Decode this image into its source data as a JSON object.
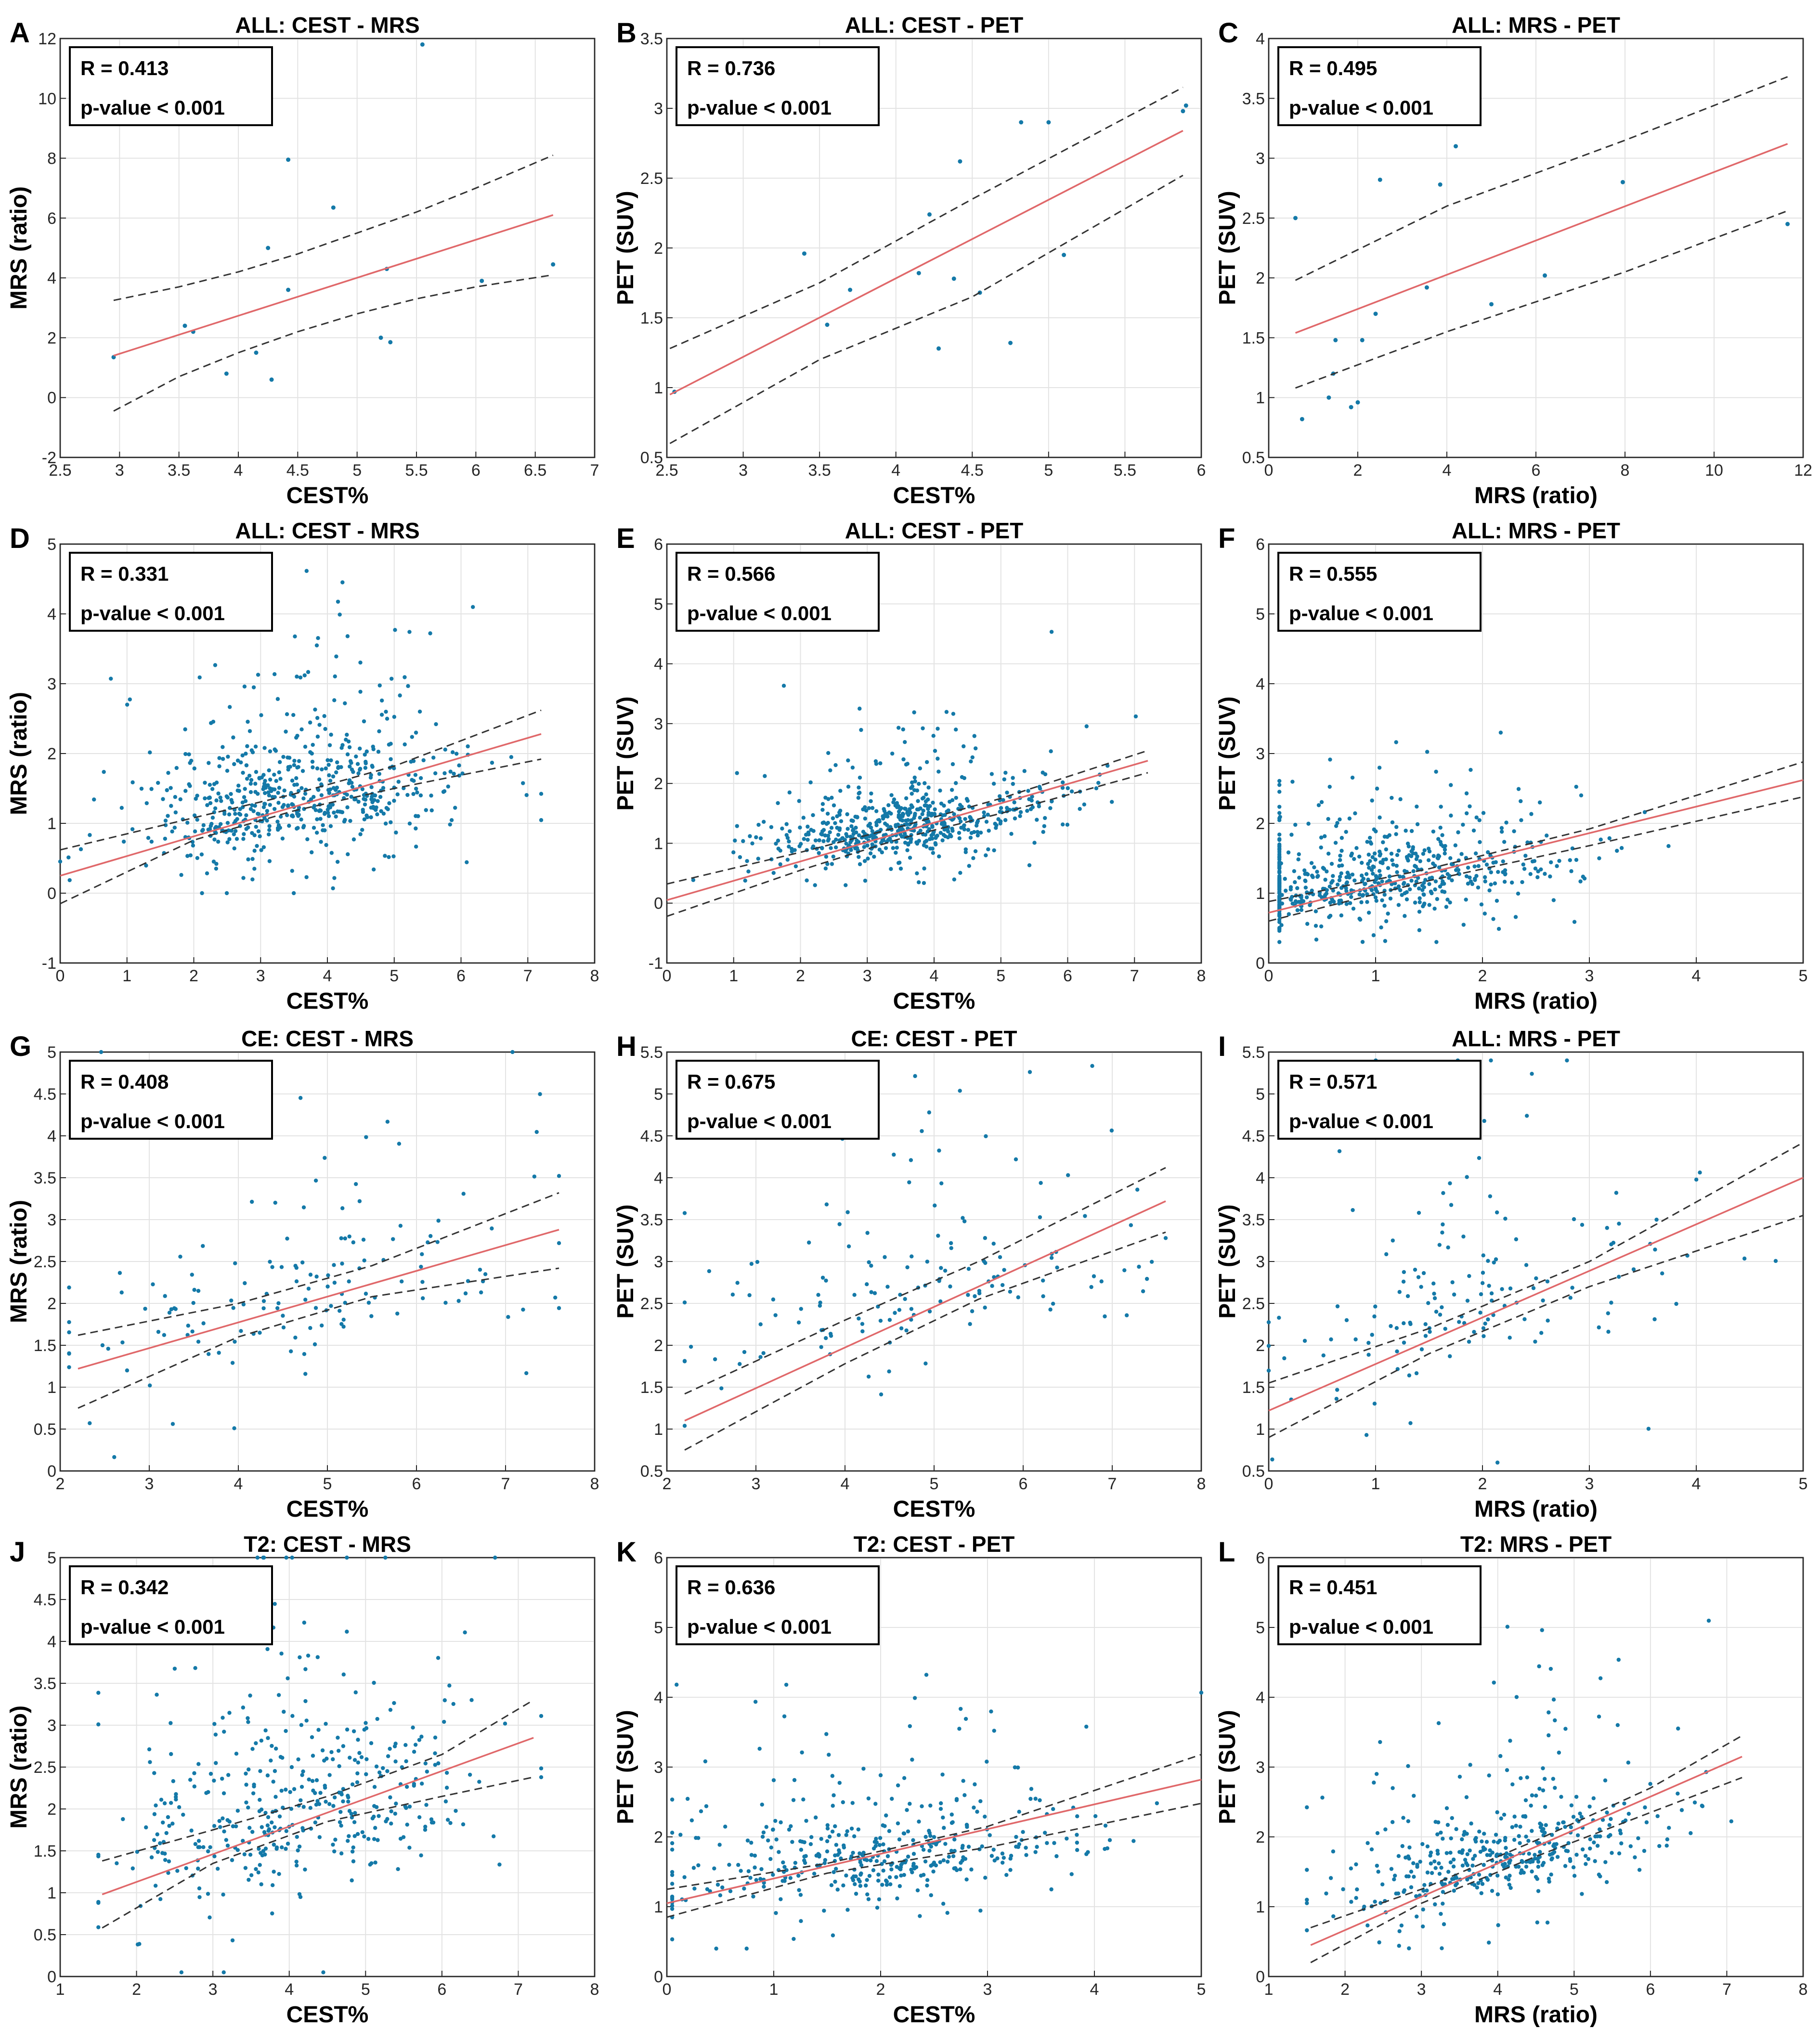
{
  "colors": {
    "points": "#1479a8",
    "fit": "#e0686a",
    "ci": "#333333"
  },
  "chart_data": [
    {
      "letter": "A",
      "type": "scatter",
      "title": "ALL: CEST - MRS",
      "xlabel": "CEST%",
      "ylabel": "MRS (ratio)",
      "xlim": [
        2.5,
        7
      ],
      "ylim": [
        -2,
        12
      ],
      "xticks": [
        2.5,
        3,
        3.5,
        4,
        4.5,
        5,
        5.5,
        6,
        6.5,
        7
      ],
      "yticks": [
        -2,
        0,
        2,
        4,
        6,
        8,
        10,
        12
      ],
      "r_label": "R = 0.413",
      "p_label": "p-value < 0.001",
      "grid": true,
      "stats_position": "top-left",
      "fit": {
        "x": [
          2.95,
          6.65
        ],
        "y": [
          1.4,
          6.1
        ]
      },
      "ci_upper": {
        "x": [
          2.95,
          3.5,
          4,
          4.5,
          5,
          5.5,
          6,
          6.65
        ],
        "y": [
          3.25,
          3.7,
          4.2,
          4.8,
          5.5,
          6.2,
          7.0,
          8.1
        ]
      },
      "ci_lower": {
        "x": [
          2.95,
          3.5,
          4,
          4.5,
          5,
          5.5,
          6,
          6.65
        ],
        "y": [
          -0.45,
          0.7,
          1.5,
          2.2,
          2.8,
          3.3,
          3.7,
          4.1
        ]
      },
      "points": {
        "x": [
          2.95,
          3.55,
          3.62,
          3.9,
          4.15,
          4.25,
          4.28,
          4.42,
          4.42,
          4.8,
          5.2,
          5.25,
          5.28,
          5.55,
          6.05,
          6.65
        ],
        "y": [
          1.35,
          2.4,
          2.2,
          0.8,
          1.5,
          5.0,
          0.6,
          7.95,
          3.6,
          6.35,
          2.0,
          4.3,
          1.85,
          11.8,
          3.9,
          4.45
        ]
      }
    },
    {
      "letter": "B",
      "type": "scatter",
      "title": "ALL: CEST - PET",
      "xlabel": "CEST%",
      "ylabel": "PET (SUV)",
      "xlim": [
        2.5,
        6
      ],
      "ylim": [
        0.5,
        3.5
      ],
      "xticks": [
        2.5,
        3,
        3.5,
        4,
        4.5,
        5,
        5.5,
        6
      ],
      "yticks": [
        0.5,
        1,
        1.5,
        2,
        2.5,
        3,
        3.5
      ],
      "r_label": "R = 0.736",
      "p_label": "p-value < 0.001",
      "grid": true,
      "stats_position": "top-left",
      "fit": {
        "x": [
          2.52,
          5.88
        ],
        "y": [
          0.95,
          2.84
        ]
      },
      "ci_upper": {
        "x": [
          2.52,
          3.5,
          4.5,
          5.88
        ],
        "y": [
          1.28,
          1.75,
          2.35,
          3.15
        ]
      },
      "ci_lower": {
        "x": [
          2.52,
          3.5,
          4.5,
          5.88
        ],
        "y": [
          0.6,
          1.2,
          1.65,
          2.52
        ]
      },
      "points": {
        "x": [
          2.55,
          3.4,
          3.55,
          3.7,
          4.15,
          4.22,
          4.28,
          4.38,
          4.42,
          4.55,
          4.75,
          4.82,
          5.0,
          5.1,
          5.88,
          5.9
        ],
        "y": [
          0.97,
          1.96,
          1.45,
          1.7,
          1.82,
          2.24,
          1.28,
          1.78,
          2.62,
          1.68,
          1.32,
          2.9,
          2.9,
          1.95,
          2.98,
          3.02
        ]
      }
    },
    {
      "letter": "C",
      "type": "scatter",
      "title": "ALL: MRS - PET",
      "xlabel": "MRS (ratio)",
      "ylabel": "PET (SUV)",
      "xlim": [
        0,
        12
      ],
      "ylim": [
        0.5,
        4
      ],
      "xticks": [
        0,
        2,
        4,
        6,
        8,
        10,
        12
      ],
      "yticks": [
        0.5,
        1,
        1.5,
        2,
        2.5,
        3,
        3.5,
        4
      ],
      "r_label": "R = 0.495",
      "p_label": "p-value < 0.001",
      "grid": true,
      "stats_position": "top-left",
      "fit": {
        "x": [
          0.6,
          11.65
        ],
        "y": [
          1.54,
          3.12
        ]
      },
      "ci_upper": {
        "x": [
          0.6,
          4,
          8,
          11.65
        ],
        "y": [
          1.98,
          2.6,
          3.15,
          3.68
        ]
      },
      "ci_lower": {
        "x": [
          0.6,
          4,
          8,
          11.65
        ],
        "y": [
          1.08,
          1.55,
          2.05,
          2.56
        ]
      },
      "points": {
        "x": [
          0.6,
          0.75,
          1.35,
          1.45,
          1.5,
          1.85,
          2.0,
          2.1,
          2.4,
          2.5,
          3.55,
          3.85,
          4.2,
          5.0,
          6.2,
          7.95,
          11.65
        ],
        "y": [
          2.5,
          0.82,
          1.0,
          1.2,
          1.48,
          0.92,
          0.96,
          1.48,
          1.7,
          2.82,
          1.92,
          2.78,
          3.1,
          1.78,
          2.02,
          2.8,
          2.45
        ]
      }
    },
    {
      "letter": "D",
      "type": "scatter",
      "title": "ALL: CEST - MRS",
      "xlabel": "CEST%",
      "ylabel": "MRS (ratio)",
      "xlim": [
        0,
        8
      ],
      "ylim": [
        -1,
        5
      ],
      "xticks": [
        0,
        1,
        2,
        3,
        4,
        5,
        6,
        7,
        8
      ],
      "yticks": [
        -1,
        0,
        1,
        2,
        3,
        4,
        5
      ],
      "r_label": "R = 0.331",
      "p_label": "p-value < 0.001",
      "grid": true,
      "stats_position": "top-left",
      "fit": {
        "x": [
          0,
          7.2
        ],
        "y": [
          0.25,
          2.28
        ]
      },
      "ci_upper": {
        "x": [
          0,
          2,
          3.5,
          5,
          7.2
        ],
        "y": [
          0.62,
          1.08,
          1.42,
          1.82,
          2.62
        ]
      },
      "ci_lower": {
        "x": [
          0,
          2,
          3.5,
          5,
          7.2
        ],
        "y": [
          -0.15,
          0.76,
          1.18,
          1.5,
          1.92
        ]
      },
      "cloud": {
        "n": 620,
        "x_center": 3.6,
        "x_spread": 1.2,
        "y_center": 1.15,
        "y_spread": 0.85,
        "x_min": 0,
        "x_max": 7.2,
        "y_min": 0.0,
        "y_max": 5
      }
    },
    {
      "letter": "E",
      "type": "scatter",
      "title": "ALL: CEST - PET",
      "xlabel": "CEST%",
      "ylabel": "PET (SUV)",
      "xlim": [
        0,
        8
      ],
      "ylim": [
        -1,
        6
      ],
      "xticks": [
        0,
        1,
        2,
        3,
        4,
        5,
        6,
        7,
        8
      ],
      "yticks": [
        -1,
        0,
        1,
        2,
        3,
        4,
        5,
        6
      ],
      "r_label": "R = 0.566",
      "p_label": "p-value < 0.001",
      "grid": true,
      "stats_position": "top-left",
      "fit": {
        "x": [
          0,
          7.2
        ],
        "y": [
          0.05,
          2.38
        ]
      },
      "ci_upper": {
        "x": [
          0,
          2,
          3.5,
          5,
          7.2
        ],
        "y": [
          0.32,
          0.85,
          1.28,
          1.75,
          2.55
        ]
      },
      "ci_lower": {
        "x": [
          0,
          2,
          3.5,
          5,
          7.2
        ],
        "y": [
          -0.22,
          0.55,
          1.08,
          1.5,
          2.18
        ]
      },
      "cloud": {
        "n": 620,
        "x_center": 3.6,
        "x_spread": 1.1,
        "y_center": 1.15,
        "y_spread": 0.55,
        "x_min": 0,
        "x_max": 7.2,
        "y_min": 0.3,
        "y_max": 5.4
      }
    },
    {
      "letter": "F",
      "type": "scatter",
      "title": "ALL: MRS - PET",
      "xlabel": "MRS (ratio)",
      "ylabel": "PET (SUV)",
      "xlim": [
        0,
        5
      ],
      "ylim": [
        0,
        6
      ],
      "xticks": [
        0,
        1,
        2,
        3,
        4,
        5
      ],
      "yticks": [
        0,
        1,
        2,
        3,
        4,
        5,
        6
      ],
      "r_label": "R = 0.555",
      "p_label": "p-value < 0.001",
      "grid": true,
      "stats_position": "top-left",
      "fit": {
        "x": [
          0,
          5
        ],
        "y": [
          0.72,
          2.62
        ]
      },
      "ci_upper": {
        "x": [
          0,
          1.5,
          3,
          5
        ],
        "y": [
          0.88,
          1.35,
          1.92,
          2.88
        ]
      },
      "ci_lower": {
        "x": [
          0,
          1.5,
          3,
          5
        ],
        "y": [
          0.6,
          1.18,
          1.68,
          2.38
        ]
      },
      "cloud": {
        "n": 620,
        "x_center": 0.9,
        "x_spread": 0.9,
        "y_center": 1.1,
        "y_spread": 0.55,
        "x_min": 0.1,
        "x_max": 5,
        "y_min": 0.3,
        "y_max": 5.4
      }
    },
    {
      "letter": "G",
      "type": "scatter",
      "title": "CE: CEST - MRS",
      "xlabel": "CEST%",
      "ylabel": "MRS (ratio)",
      "xlim": [
        2,
        8
      ],
      "ylim": [
        0,
        5
      ],
      "xticks": [
        2,
        3,
        4,
        5,
        6,
        7,
        8
      ],
      "yticks": [
        0,
        0.5,
        1,
        1.5,
        2,
        2.5,
        3,
        3.5,
        4,
        4.5,
        5
      ],
      "r_label": "R = 0.408",
      "p_label": "p-value < 0.001",
      "grid": true,
      "stats_position": "top-left",
      "fit": {
        "x": [
          2.2,
          7.6
        ],
        "y": [
          1.22,
          2.88
        ]
      },
      "ci_upper": {
        "x": [
          2.2,
          4,
          5.5,
          7.6
        ],
        "y": [
          1.62,
          2.0,
          2.45,
          3.32
        ]
      },
      "ci_lower": {
        "x": [
          2.2,
          4,
          5.5,
          7.6
        ],
        "y": [
          0.75,
          1.6,
          2.08,
          2.42
        ]
      },
      "cloud": {
        "n": 150,
        "x_center": 4.6,
        "x_spread": 1.5,
        "y_center": 1.9,
        "y_spread": 1.0,
        "x_min": 2.1,
        "x_max": 7.6,
        "y_min": 0.05,
        "y_max": 5
      }
    },
    {
      "letter": "H",
      "type": "scatter",
      "title": "CE: CEST - PET",
      "xlabel": "CEST%",
      "ylabel": "PET (SUV)",
      "xlim": [
        2,
        8
      ],
      "ylim": [
        0.5,
        5.5
      ],
      "xticks": [
        2,
        3,
        4,
        5,
        6,
        7,
        8
      ],
      "yticks": [
        0.5,
        1,
        1.5,
        2,
        2.5,
        3,
        3.5,
        4,
        4.5,
        5,
        5.5
      ],
      "r_label": "R = 0.675",
      "p_label": "p-value < 0.001",
      "grid": true,
      "stats_position": "top-left",
      "fit": {
        "x": [
          2.2,
          7.6
        ],
        "y": [
          1.1,
          3.72
        ]
      },
      "ci_upper": {
        "x": [
          2.2,
          4,
          5.5,
          7.6
        ],
        "y": [
          1.42,
          2.3,
          3.0,
          4.12
        ]
      },
      "ci_lower": {
        "x": [
          2.2,
          4,
          5.5,
          7.6
        ],
        "y": [
          0.75,
          1.78,
          2.55,
          3.35
        ]
      },
      "cloud": {
        "n": 150,
        "x_center": 4.9,
        "x_spread": 1.4,
        "y_center": 2.5,
        "y_spread": 0.9,
        "x_min": 2.2,
        "x_max": 7.6,
        "y_min": 0.6,
        "y_max": 5.4
      }
    },
    {
      "letter": "I",
      "type": "scatter",
      "title": "ALL: MRS - PET",
      "xlabel": "MRS (ratio)",
      "ylabel": "PET (SUV)",
      "xlim": [
        0,
        5
      ],
      "ylim": [
        0.5,
        5.5
      ],
      "xticks": [
        0,
        1,
        2,
        3,
        4,
        5
      ],
      "yticks": [
        0.5,
        1,
        1.5,
        2,
        2.5,
        3,
        3.5,
        4,
        4.5,
        5,
        5.5
      ],
      "r_label": "R = 0.571",
      "p_label": "p-value < 0.001",
      "grid": true,
      "stats_position": "top-left",
      "fit": {
        "x": [
          0,
          5
        ],
        "y": [
          1.22,
          4.0
        ]
      },
      "ci_upper": {
        "x": [
          0,
          1.5,
          3,
          5
        ],
        "y": [
          1.55,
          2.2,
          3.0,
          4.42
        ]
      },
      "ci_lower": {
        "x": [
          0,
          1.5,
          3,
          5
        ],
        "y": [
          0.9,
          1.9,
          2.7,
          3.55
        ]
      },
      "cloud": {
        "n": 150,
        "x_center": 1.9,
        "x_spread": 1.0,
        "y_center": 2.4,
        "y_spread": 1.0,
        "x_min": 0,
        "x_max": 5,
        "y_min": 0.6,
        "y_max": 5.4
      }
    },
    {
      "letter": "J",
      "type": "scatter",
      "title": "T2: CEST - MRS",
      "xlabel": "CEST%",
      "ylabel": "MRS (ratio)",
      "xlim": [
        1,
        8
      ],
      "ylim": [
        0,
        5
      ],
      "xticks": [
        1,
        2,
        3,
        4,
        5,
        6,
        7,
        8
      ],
      "yticks": [
        0,
        0.5,
        1,
        1.5,
        2,
        2.5,
        3,
        3.5,
        4,
        4.5,
        5
      ],
      "r_label": "R = 0.342",
      "p_label": "p-value < 0.001",
      "grid": true,
      "stats_position": "top-left",
      "fit": {
        "x": [
          1.55,
          7.2
        ],
        "y": [
          0.98,
          2.85
        ]
      },
      "ci_upper": {
        "x": [
          1.55,
          3,
          4.5,
          6,
          7.2
        ],
        "y": [
          1.38,
          1.75,
          2.15,
          2.65,
          3.3
        ]
      },
      "ci_lower": {
        "x": [
          1.55,
          3,
          4.5,
          6,
          7.2
        ],
        "y": [
          0.58,
          1.35,
          1.85,
          2.15,
          2.38
        ]
      },
      "cloud": {
        "n": 420,
        "x_center": 4.1,
        "x_spread": 1.2,
        "y_center": 1.8,
        "y_spread": 1.05,
        "x_min": 1.5,
        "x_max": 7.3,
        "y_min": 0.05,
        "y_max": 5
      }
    },
    {
      "letter": "K",
      "type": "scatter",
      "title": "T2: CEST - PET",
      "xlabel": "CEST%",
      "ylabel": "PET (SUV)",
      "xlim": [
        0,
        5
      ],
      "ylim": [
        0,
        6
      ],
      "xticks": [
        0,
        1,
        2,
        3,
        4,
        5
      ],
      "yticks": [
        0,
        1,
        2,
        3,
        4,
        5,
        6
      ],
      "r_label": "R = 0.636",
      "p_label": "p-value < 0.001",
      "grid": true,
      "stats_position": "top-left",
      "fit": {
        "x": [
          0,
          5
        ],
        "y": [
          1.05,
          2.82
        ]
      },
      "ci_upper": {
        "x": [
          0,
          1.5,
          3,
          5
        ],
        "y": [
          1.25,
          1.62,
          2.15,
          3.18
        ]
      },
      "ci_lower": {
        "x": [
          0,
          1.5,
          3,
          5
        ],
        "y": [
          0.85,
          1.48,
          1.85,
          2.48
        ]
      },
      "cloud": {
        "n": 420,
        "x_center": 1.9,
        "x_spread": 1.1,
        "y_center": 1.45,
        "y_spread": 0.7,
        "x_min": 0.05,
        "x_max": 5,
        "y_min": 0.4,
        "y_max": 5.6
      }
    },
    {
      "letter": "L",
      "type": "scatter",
      "title": "T2: MRS - PET",
      "xlabel": "MRS (ratio)",
      "ylabel": "PET (SUV)",
      "xlim": [
        1,
        8
      ],
      "ylim": [
        0,
        6
      ],
      "xticks": [
        1,
        2,
        3,
        4,
        5,
        6,
        7,
        8
      ],
      "yticks": [
        0,
        1,
        2,
        3,
        4,
        5,
        6
      ],
      "r_label": "R = 0.451",
      "p_label": "p-value < 0.001",
      "grid": true,
      "stats_position": "top-left",
      "fit": {
        "x": [
          1.55,
          7.2
        ],
        "y": [
          0.45,
          3.15
        ]
      },
      "ci_upper": {
        "x": [
          1.55,
          3,
          4.5,
          6,
          7.2
        ],
        "y": [
          0.7,
          1.25,
          1.95,
          2.7,
          3.45
        ]
      },
      "ci_lower": {
        "x": [
          1.55,
          3,
          4.5,
          6,
          7.2
        ],
        "y": [
          0.2,
          1.05,
          1.72,
          2.35,
          2.85
        ]
      },
      "cloud": {
        "n": 420,
        "x_center": 4.1,
        "x_spread": 1.1,
        "y_center": 1.55,
        "y_spread": 0.7,
        "x_min": 1.5,
        "x_max": 7.3,
        "y_min": 0.4,
        "y_max": 5.5
      }
    }
  ]
}
